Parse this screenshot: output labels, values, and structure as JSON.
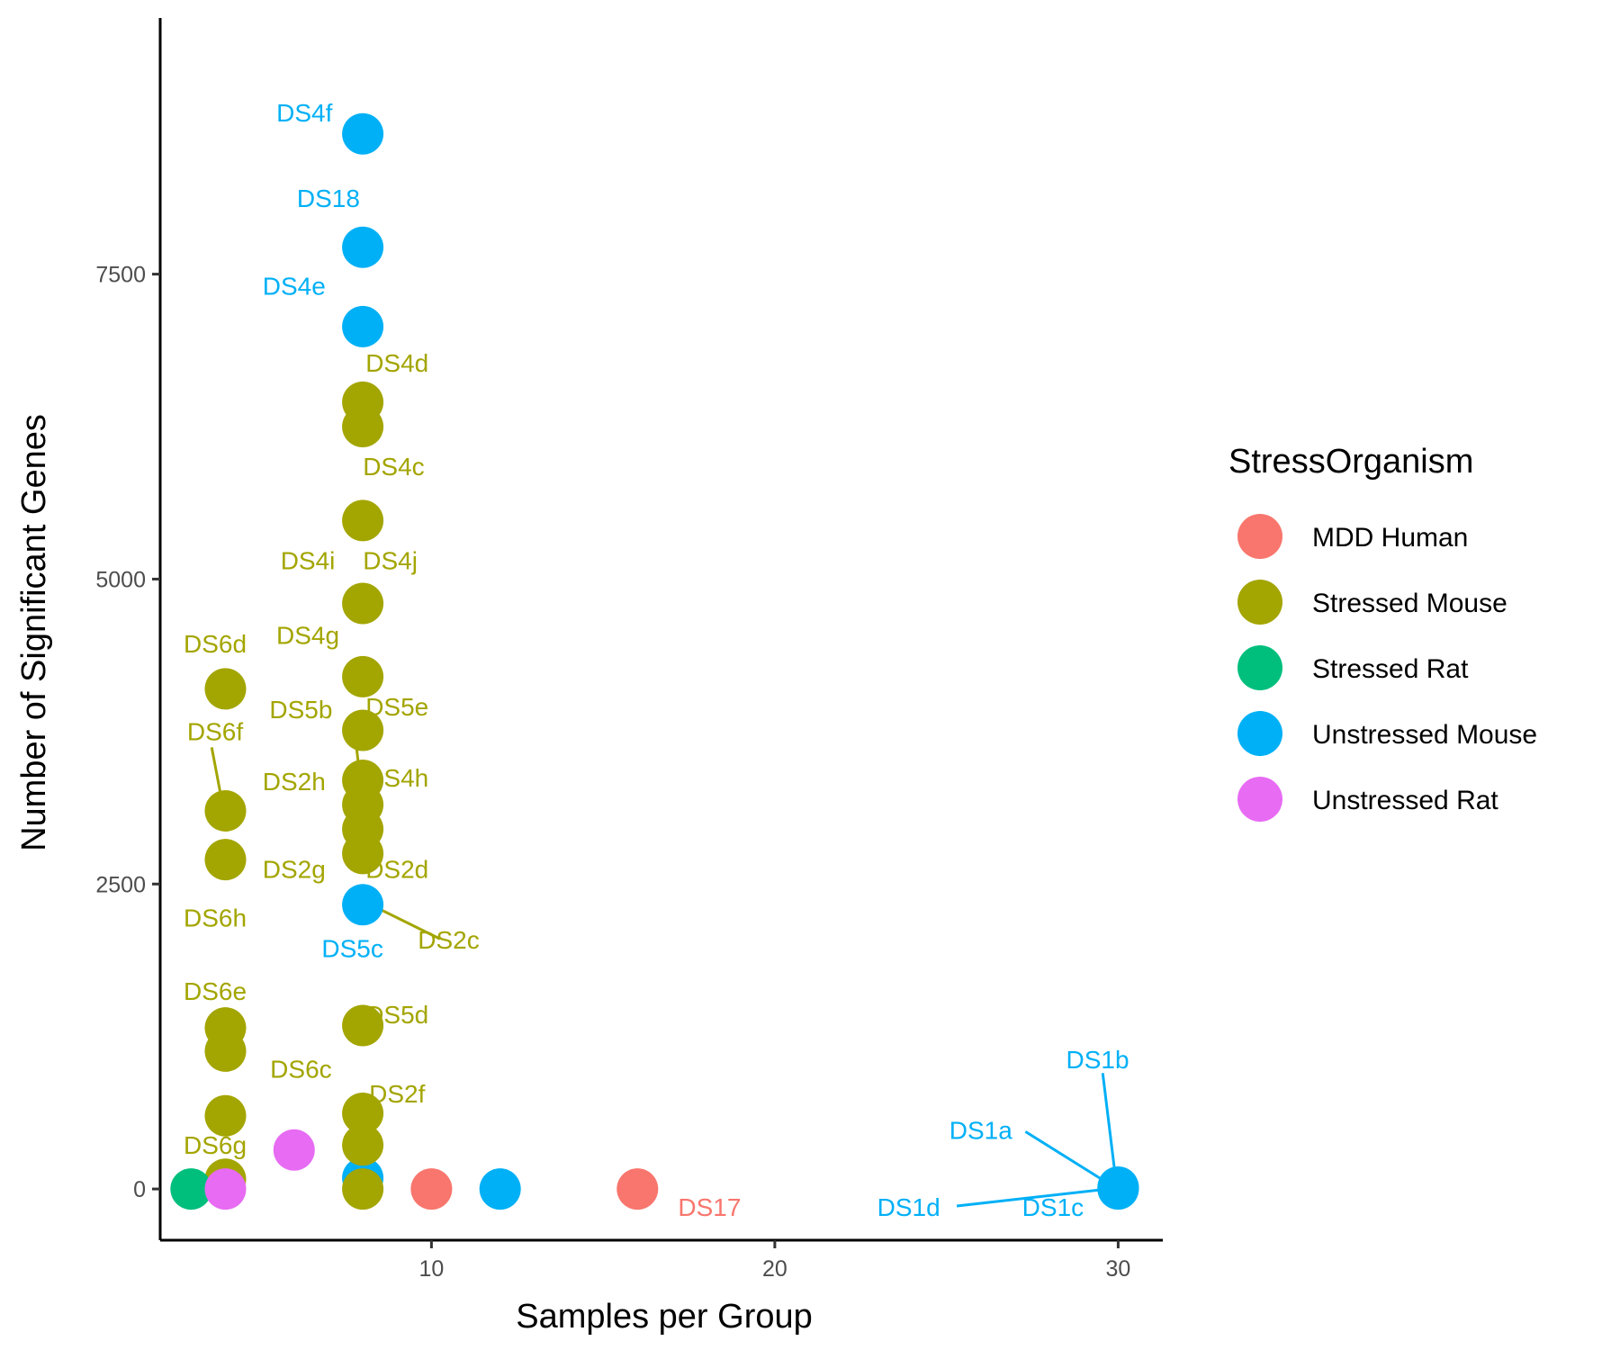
{
  "chart_data": {
    "type": "scatter",
    "title": "",
    "xlabel": "Samples per Group",
    "ylabel": "Number of Significant Genes",
    "xlim": [
      2.1,
      31.3
    ],
    "ylim": [
      -420,
      9600
    ],
    "xticks": [
      10,
      20,
      30
    ],
    "yticks": [
      0,
      2500,
      5000,
      7500
    ],
    "grid": false,
    "legend": {
      "title": "StressOrganism",
      "position": "right",
      "entries": [
        {
          "name": "MDD Human",
          "color": "#F8766D"
        },
        {
          "name": "Stressed Mouse",
          "color": "#A3A500"
        },
        {
          "name": "Stressed Rat",
          "color": "#00BF7D"
        },
        {
          "name": "Unstressed Mouse",
          "color": "#00B0F6"
        },
        {
          "name": "Unstressed Rat",
          "color": "#E76BF3"
        }
      ]
    },
    "points": [
      {
        "x": 8,
        "y": 8650,
        "group": "Unstressed Mouse"
      },
      {
        "x": 8,
        "y": 7720,
        "group": "Unstressed Mouse"
      },
      {
        "x": 8,
        "y": 7070,
        "group": "Unstressed Mouse"
      },
      {
        "x": 8,
        "y": 2330,
        "group": "Unstressed Mouse"
      },
      {
        "x": 8,
        "y": 90,
        "group": "Unstressed Mouse"
      },
      {
        "x": 12,
        "y": 0,
        "group": "Unstressed Mouse"
      },
      {
        "x": 30,
        "y": 0,
        "group": "Unstressed Mouse"
      },
      {
        "x": 30,
        "y": 5,
        "group": "Unstressed Mouse"
      },
      {
        "x": 30,
        "y": 10,
        "group": "Unstressed Mouse"
      },
      {
        "x": 30,
        "y": 15,
        "group": "Unstressed Mouse"
      },
      {
        "x": 8,
        "y": 6450,
        "group": "Stressed Mouse"
      },
      {
        "x": 8,
        "y": 6250,
        "group": "Stressed Mouse"
      },
      {
        "x": 8,
        "y": 5480,
        "group": "Stressed Mouse"
      },
      {
        "x": 8,
        "y": 4800,
        "group": "Stressed Mouse"
      },
      {
        "x": 8,
        "y": 4200,
        "group": "Stressed Mouse"
      },
      {
        "x": 8,
        "y": 3760,
        "group": "Stressed Mouse"
      },
      {
        "x": 8,
        "y": 3350,
        "group": "Stressed Mouse"
      },
      {
        "x": 8,
        "y": 3150,
        "group": "Stressed Mouse"
      },
      {
        "x": 8,
        "y": 2950,
        "group": "Stressed Mouse"
      },
      {
        "x": 8,
        "y": 2750,
        "group": "Stressed Mouse"
      },
      {
        "x": 8,
        "y": 1340,
        "group": "Stressed Mouse"
      },
      {
        "x": 8,
        "y": 620,
        "group": "Stressed Mouse"
      },
      {
        "x": 8,
        "y": 360,
        "group": "Stressed Mouse"
      },
      {
        "x": 8,
        "y": 0,
        "group": "Stressed Mouse"
      },
      {
        "x": 4,
        "y": 4100,
        "group": "Stressed Mouse"
      },
      {
        "x": 4,
        "y": 3100,
        "group": "Stressed Mouse"
      },
      {
        "x": 4,
        "y": 2700,
        "group": "Stressed Mouse"
      },
      {
        "x": 4,
        "y": 1320,
        "group": "Stressed Mouse"
      },
      {
        "x": 4,
        "y": 1130,
        "group": "Stressed Mouse"
      },
      {
        "x": 4,
        "y": 600,
        "group": "Stressed Mouse"
      },
      {
        "x": 4,
        "y": 80,
        "group": "Stressed Mouse"
      },
      {
        "x": 3,
        "y": 0,
        "group": "Stressed Rat"
      },
      {
        "x": 4,
        "y": 0,
        "group": "Unstressed Rat"
      },
      {
        "x": 6,
        "y": 320,
        "group": "Unstressed Rat"
      },
      {
        "x": 10,
        "y": 0,
        "group": "MDD Human"
      },
      {
        "x": 16,
        "y": 0,
        "group": "MDD Human"
      }
    ],
    "labels": [
      {
        "text": "DS4f",
        "tx": 6.3,
        "ty": 8750,
        "group": "Unstressed Mouse"
      },
      {
        "text": "DS18",
        "tx": 7.0,
        "ty": 8050,
        "group": "Unstressed Mouse"
      },
      {
        "text": "DS4e",
        "tx": 6.0,
        "ty": 7330,
        "group": "Unstressed Mouse"
      },
      {
        "text": "DS4d",
        "tx": 9.0,
        "ty": 6700,
        "group": "Stressed Mouse"
      },
      {
        "text": "DS4c",
        "tx": 8.9,
        "ty": 5850,
        "group": "Stressed Mouse"
      },
      {
        "text": "DS4i",
        "tx": 6.4,
        "ty": 5080,
        "group": "Stressed Mouse"
      },
      {
        "text": "DS4j",
        "tx": 8.8,
        "ty": 5080,
        "group": "Stressed Mouse"
      },
      {
        "text": "DS6d",
        "tx": 3.7,
        "ty": 4400,
        "group": "Stressed Mouse"
      },
      {
        "text": "DS4g",
        "tx": 6.4,
        "ty": 4470,
        "group": "Stressed Mouse"
      },
      {
        "text": "DS5b",
        "tx": 6.2,
        "ty": 3860,
        "group": "Stressed Mouse"
      },
      {
        "text": "DS5e",
        "tx": 9.0,
        "ty": 3880,
        "group": "Stressed Mouse"
      },
      {
        "text": "DS6f",
        "tx": 3.7,
        "ty": 3680,
        "group": "Stressed Mouse"
      },
      {
        "text": "DS2h",
        "tx": 6.0,
        "ty": 3270,
        "group": "Stressed Mouse"
      },
      {
        "text": "DS4h",
        "tx": 9.0,
        "ty": 3300,
        "group": "Stressed Mouse"
      },
      {
        "text": "DS2g",
        "tx": 6.0,
        "ty": 2550,
        "group": "Stressed Mouse"
      },
      {
        "text": "DS2d",
        "tx": 9.0,
        "ty": 2550,
        "group": "Stressed Mouse"
      },
      {
        "text": "DS6h",
        "tx": 3.7,
        "ty": 2150,
        "group": "Stressed Mouse"
      },
      {
        "text": "DS2c",
        "tx": 10.5,
        "ty": 1970,
        "group": "Stressed Mouse"
      },
      {
        "text": "DS5c",
        "tx": 7.7,
        "ty": 1900,
        "group": "Unstressed Mouse"
      },
      {
        "text": "DS6e",
        "tx": 3.7,
        "ty": 1550,
        "group": "Stressed Mouse"
      },
      {
        "text": "DS5d",
        "tx": 9.0,
        "ty": 1360,
        "group": "Stressed Mouse"
      },
      {
        "text": "DS6c",
        "tx": 6.2,
        "ty": 910,
        "group": "Stressed Mouse"
      },
      {
        "text": "DS2f",
        "tx": 9.0,
        "ty": 710,
        "group": "Stressed Mouse"
      },
      {
        "text": "DS6g",
        "tx": 3.7,
        "ty": 290,
        "group": "Stressed Mouse"
      },
      {
        "text": "DS17",
        "tx": 18.1,
        "ty": -220,
        "group": "MDD Human"
      },
      {
        "text": "DS1b",
        "tx": 29.4,
        "ty": 990,
        "group": "Unstressed Mouse"
      },
      {
        "text": "DS1a",
        "tx": 26.0,
        "ty": 410,
        "group": "Unstressed Mouse"
      },
      {
        "text": "DS1d",
        "tx": 23.9,
        "ty": -220,
        "group": "Unstressed Mouse"
      },
      {
        "text": "DS1c",
        "tx": 28.1,
        "ty": -220,
        "group": "Unstressed Mouse"
      }
    ],
    "segments": [
      {
        "x1": 3.6,
        "y1": 3620,
        "x2": 3.85,
        "y2": 3250,
        "group": "Stressed Mouse"
      },
      {
        "x1": 7.8,
        "y1": 3660,
        "x2": 7.9,
        "y2": 3420,
        "group": "Stressed Mouse"
      },
      {
        "x1": 8.45,
        "y1": 2300,
        "x2": 10.25,
        "y2": 2050,
        "group": "Stressed Mouse"
      },
      {
        "x1": 29.55,
        "y1": 950,
        "x2": 29.95,
        "y2": 30,
        "group": "Unstressed Mouse"
      },
      {
        "x1": 27.3,
        "y1": 470,
        "x2": 29.8,
        "y2": 30,
        "group": "Unstressed Mouse"
      },
      {
        "x1": 25.3,
        "y1": -140,
        "x2": 29.7,
        "y2": 0,
        "group": "Unstressed Mouse"
      }
    ]
  }
}
